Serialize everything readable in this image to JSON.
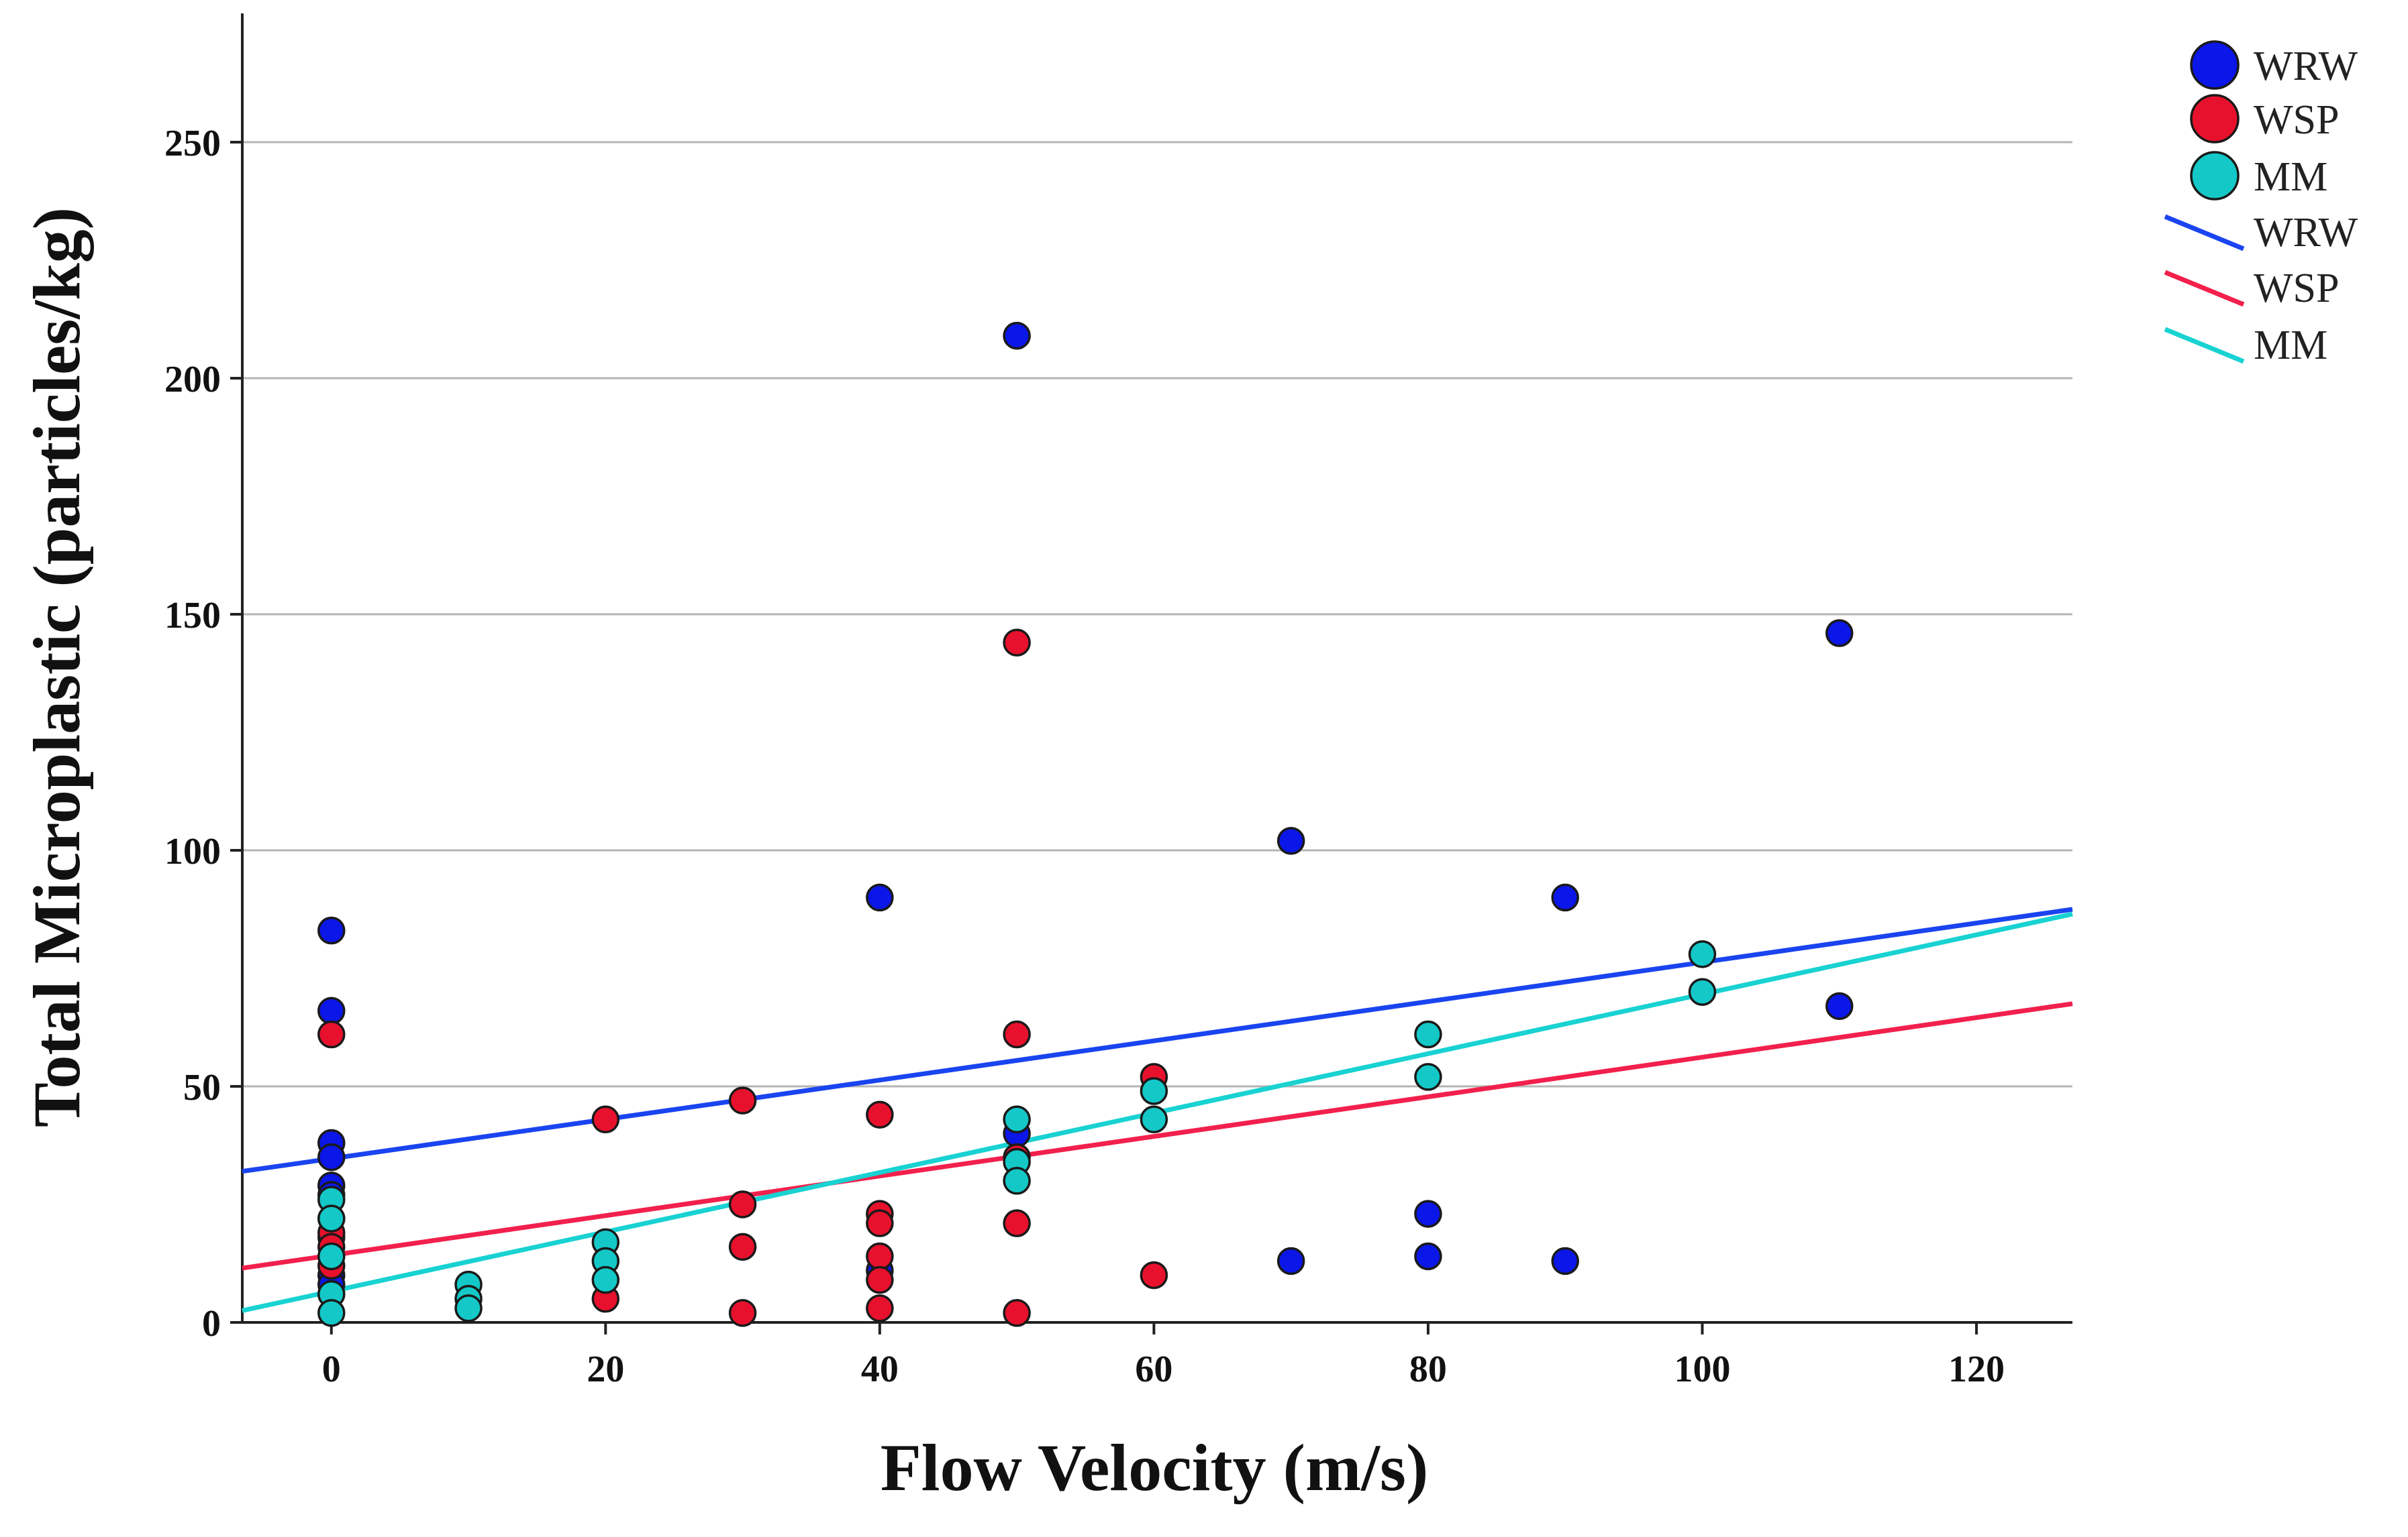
{
  "chart_data": {
    "type": "scatter",
    "title": "",
    "xlabel": "Flow Velocity (m/s)",
    "ylabel": "Total Microplastic (particles/kg)",
    "xlim": [
      -6.5,
      127
    ],
    "ylim": [
      0,
      275
    ],
    "xticks": [
      0,
      20,
      40,
      60,
      80,
      100,
      120
    ],
    "yticks": [
      0,
      50,
      100,
      150,
      200,
      250
    ],
    "grid": "horizontal",
    "legend_position": "top-right",
    "series": [
      {
        "name": "WRW",
        "color": "#0b16e8",
        "points": [
          [
            0,
            83
          ],
          [
            0,
            66
          ],
          [
            0,
            38
          ],
          [
            0,
            35
          ],
          [
            0,
            29
          ],
          [
            0,
            27
          ],
          [
            0,
            22
          ],
          [
            0,
            18
          ],
          [
            0,
            10
          ],
          [
            0,
            8
          ],
          [
            40,
            90
          ],
          [
            40,
            11
          ],
          [
            50,
            209
          ],
          [
            50,
            40
          ],
          [
            70,
            102
          ],
          [
            70,
            13
          ],
          [
            80,
            23
          ],
          [
            80,
            14
          ],
          [
            90,
            90
          ],
          [
            90,
            13
          ],
          [
            110,
            146
          ],
          [
            110,
            67
          ]
        ],
        "fit": {
          "label": "WRW",
          "line_color": "#1a44f0",
          "x0": -6.5,
          "y0": 32,
          "x1": 127,
          "y1": 87.5
        }
      },
      {
        "name": "WSP",
        "color": "#e8112d",
        "points": [
          [
            0,
            61
          ],
          [
            0,
            19
          ],
          [
            0,
            16
          ],
          [
            0,
            12
          ],
          [
            0,
            6
          ],
          [
            20,
            43
          ],
          [
            20,
            5
          ],
          [
            30,
            47
          ],
          [
            30,
            25
          ],
          [
            30,
            16
          ],
          [
            30,
            2
          ],
          [
            40,
            44
          ],
          [
            40,
            23
          ],
          [
            40,
            21
          ],
          [
            40,
            14
          ],
          [
            40,
            9
          ],
          [
            40,
            3
          ],
          [
            50,
            144
          ],
          [
            50,
            61
          ],
          [
            50,
            35
          ],
          [
            50,
            21
          ],
          [
            50,
            2
          ],
          [
            60,
            52
          ],
          [
            60,
            10
          ]
        ],
        "fit": {
          "label": "WSP",
          "line_color": "#f2204c",
          "x0": -6.5,
          "y0": 11.5,
          "x1": 127,
          "y1": 67.5
        }
      },
      {
        "name": "MM",
        "color": "#14c8c8",
        "points": [
          [
            0,
            26
          ],
          [
            0,
            22
          ],
          [
            0,
            14
          ],
          [
            0,
            6
          ],
          [
            0,
            2
          ],
          [
            10,
            8
          ],
          [
            10,
            5
          ],
          [
            10,
            3
          ],
          [
            20,
            17
          ],
          [
            20,
            13
          ],
          [
            20,
            9
          ],
          [
            50,
            43
          ],
          [
            50,
            34
          ],
          [
            50,
            30
          ],
          [
            60,
            49
          ],
          [
            60,
            43
          ],
          [
            80,
            61
          ],
          [
            80,
            52
          ],
          [
            100,
            78
          ],
          [
            100,
            70
          ]
        ],
        "fit": {
          "label": "MM",
          "line_color": "#19d2d2",
          "x0": -6.5,
          "y0": 2.5,
          "x1": 127,
          "y1": 86.5
        }
      }
    ]
  }
}
